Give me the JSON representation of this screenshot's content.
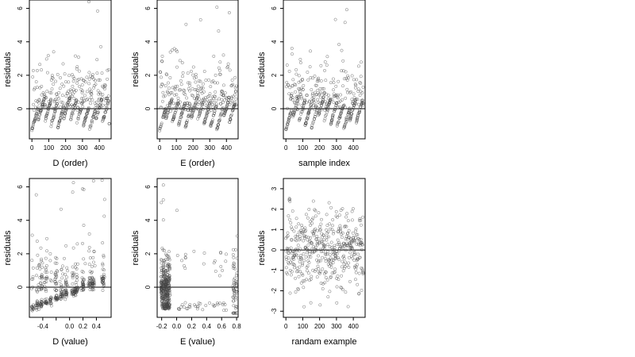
{
  "chart_data": [
    {
      "type": "scatter",
      "xlabel": "D (order)",
      "ylabel": "residuals",
      "xlim": [
        -15,
        470
      ],
      "ylim": [
        -1.8,
        6.5
      ],
      "xticks": [
        0,
        100,
        200,
        300,
        400
      ],
      "xtick_labels": [
        "0",
        "100",
        "200",
        "300",
        "400"
      ],
      "yticks": [
        0,
        2,
        4,
        6
      ],
      "ytick_labels": [
        "0",
        "2",
        "4",
        "6"
      ],
      "hline": 0,
      "gen": {
        "mode": "order-sorted",
        "seed": 11,
        "n": 460
      }
    },
    {
      "type": "scatter",
      "xlabel": "E (order)",
      "ylabel": "residuals",
      "xlim": [
        -15,
        470
      ],
      "ylim": [
        -1.8,
        6.5
      ],
      "xticks": [
        0,
        100,
        200,
        300,
        400
      ],
      "xtick_labels": [
        "0",
        "100",
        "200",
        "300",
        "400"
      ],
      "yticks": [
        0,
        2,
        4,
        6
      ],
      "ytick_labels": [
        "0",
        "2",
        "4",
        "6"
      ],
      "hline": 0,
      "gen": {
        "mode": "order-sorted",
        "seed": 23,
        "n": 460
      }
    },
    {
      "type": "scatter",
      "xlabel": "sample index",
      "ylabel": "residuals",
      "xlim": [
        -15,
        470
      ],
      "ylim": [
        -1.8,
        6.5
      ],
      "xticks": [
        0,
        100,
        200,
        300,
        400
      ],
      "xtick_labels": [
        "0",
        "100",
        "200",
        "300",
        "400"
      ],
      "yticks": [
        0,
        2,
        4,
        6
      ],
      "ytick_labels": [
        "0",
        "2",
        "4",
        "6"
      ],
      "hline": 0,
      "gen": {
        "mode": "order-sorted",
        "seed": 37,
        "n": 460
      }
    },
    {
      "type": "scatter",
      "xlabel": "D (value)",
      "ylabel": "residuals",
      "xlim": [
        -0.6,
        0.62
      ],
      "ylim": [
        -1.8,
        6.5
      ],
      "xticks": [
        -0.4,
        -0.2,
        0.0,
        0.2,
        0.4
      ],
      "xtick_labels": [
        "-0.4",
        "",
        "0.0",
        "0.2",
        "0.4"
      ],
      "yticks": [
        0,
        2,
        4,
        6
      ],
      "ytick_labels": [
        "0",
        "2",
        "4",
        "6"
      ],
      "hline": 0,
      "gen": {
        "mode": "value-d",
        "seed": 51,
        "n": 460
      }
    },
    {
      "type": "scatter",
      "xlabel": "E (value)",
      "ylabel": "residuals",
      "xlim": [
        -0.26,
        0.82
      ],
      "ylim": [
        -1.8,
        6.5
      ],
      "xticks": [
        -0.2,
        0.0,
        0.2,
        0.4,
        0.6,
        0.8
      ],
      "xtick_labels": [
        "-0.2",
        "0.0",
        "0.2",
        "0.4",
        "0.6",
        "0.8"
      ],
      "yticks": [
        0,
        2,
        4,
        6
      ],
      "ytick_labels": [
        "0",
        "2",
        "4",
        "6"
      ],
      "hline": 0,
      "gen": {
        "mode": "value-e",
        "seed": 67,
        "n": 460
      }
    },
    {
      "type": "scatter",
      "xlabel": "randam example",
      "ylabel": "residuals",
      "xlim": [
        -15,
        470
      ],
      "ylim": [
        -3.3,
        3.5
      ],
      "xticks": [
        0,
        100,
        200,
        300,
        400
      ],
      "xtick_labels": [
        "0",
        "100",
        "200",
        "300",
        "400"
      ],
      "yticks": [
        -3,
        -2,
        -1,
        0,
        1,
        2,
        3
      ],
      "ytick_labels": [
        "-3",
        "-2",
        "-1",
        "0",
        "1",
        "2",
        "3"
      ],
      "hline": 0,
      "gen": {
        "mode": "random",
        "seed": 83,
        "n": 460
      }
    }
  ]
}
